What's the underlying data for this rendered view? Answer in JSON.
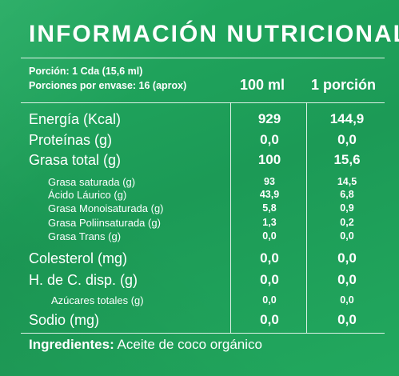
{
  "title": "INFORMACIÓN NUTRICIONAL",
  "serving": {
    "portion": "Porción: 1 Cda (15,6 ml)",
    "per_container": "Porciones por envase: 16 (aprox)"
  },
  "columns": {
    "per_100": "100 ml",
    "per_portion": "1 porción"
  },
  "rows": [
    {
      "label": "Energía (Kcal)",
      "per_100": "929",
      "per_portion": "144,9",
      "size": "big"
    },
    {
      "label": "Proteínas (g)",
      "per_100": "0,0",
      "per_portion": "0,0",
      "size": "big"
    },
    {
      "label": "Grasa total (g)",
      "per_100": "100",
      "per_portion": "15,6",
      "size": "big"
    },
    {
      "label": "Grasa saturada (g)",
      "per_100": "93",
      "per_portion": "14,5",
      "size": "small"
    },
    {
      "label": "Ácido Láurico (g)",
      "per_100": "43,9",
      "per_portion": "6,8",
      "size": "small"
    },
    {
      "label": "Grasa Monoisaturada (g)",
      "per_100": "5,8",
      "per_portion": "0,9",
      "size": "small"
    },
    {
      "label": "Grasa Poliinsaturada (g)",
      "per_100": "1,3",
      "per_portion": "0,2",
      "size": "small"
    },
    {
      "label": "Grasa Trans (g)",
      "per_100": "0,0",
      "per_portion": "0,0",
      "size": "small"
    },
    {
      "label": "Colesterol (mg)",
      "per_100": "0,0",
      "per_portion": "0,0",
      "size": "big"
    },
    {
      "label": "H. de C. disp. (g)",
      "per_100": "0,0",
      "per_portion": "0,0",
      "size": "big"
    },
    {
      "label": "Azúcares totales (g)",
      "per_100": "0,0",
      "per_portion": "0,0",
      "size": "small"
    },
    {
      "label": "Sodio (mg)",
      "per_100": "0,0",
      "per_portion": "0,0",
      "size": "big"
    }
  ],
  "ingredients": {
    "label": "Ingredientes:",
    "text": " Aceite de coco orgánico"
  },
  "colors": {
    "background": "#1fa35c",
    "text": "#ffffff"
  }
}
